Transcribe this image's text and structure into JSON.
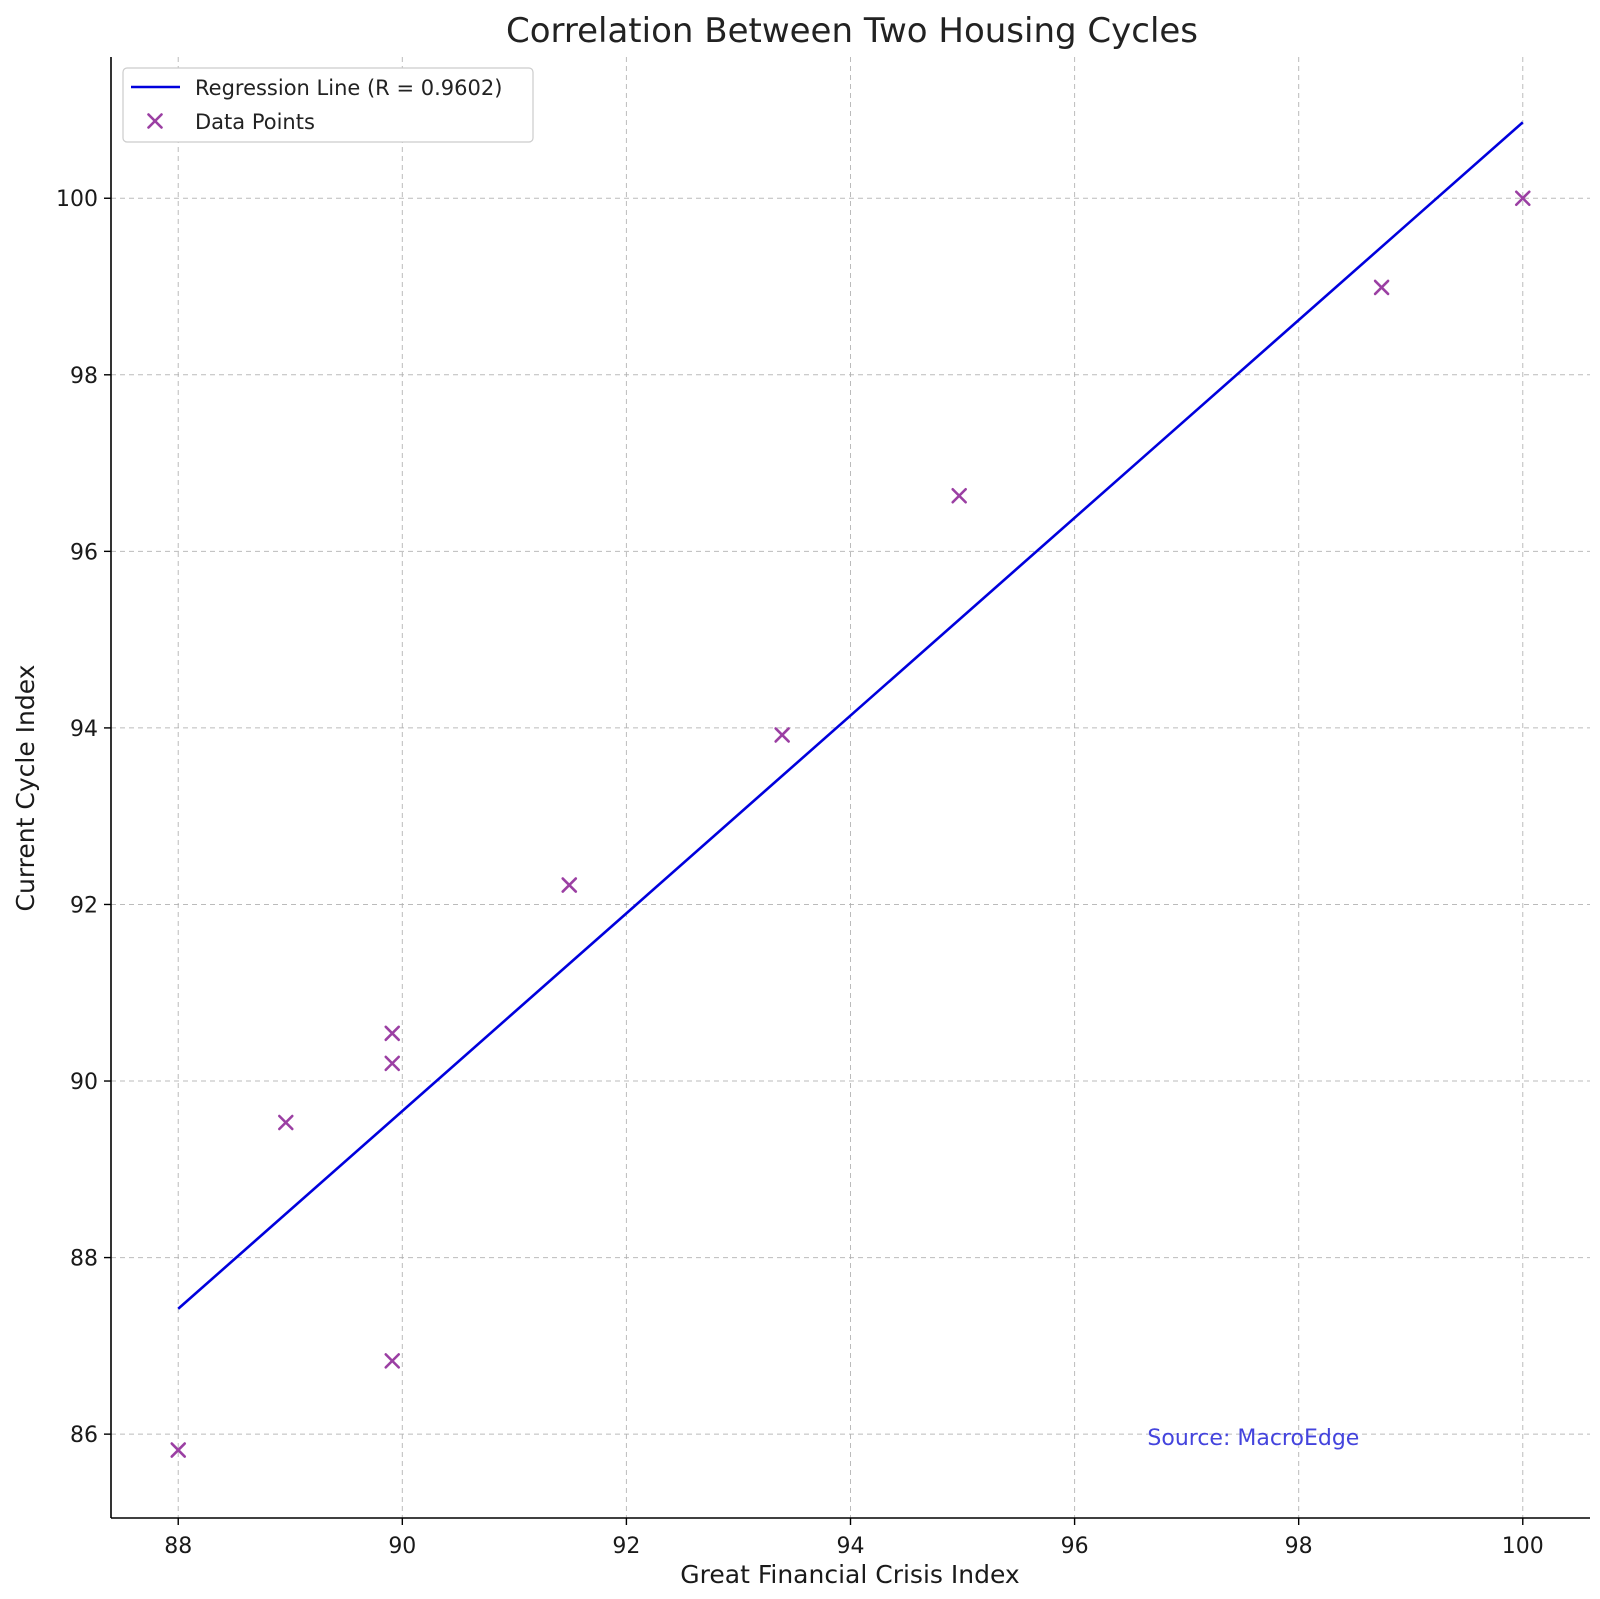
{
  "chart_data": {
    "type": "scatter",
    "title": "Correlation Between Two Housing Cycles",
    "xlabel": "Great Financial Crisis Index",
    "ylabel": "Current Cycle Index",
    "xlim": [
      87.4,
      100.6
    ],
    "ylim": [
      85.05,
      101.6
    ],
    "xticks": [
      88,
      90,
      92,
      94,
      96,
      98,
      100
    ],
    "yticks": [
      86,
      88,
      90,
      92,
      94,
      96,
      98,
      100
    ],
    "grid": true,
    "legend_position": "top-left",
    "series": [
      {
        "name": "Data Points",
        "kind": "scatter",
        "marker": "x",
        "color": "#9b3fa3",
        "points": [
          {
            "x": 88.0,
            "y": 85.82
          },
          {
            "x": 88.96,
            "y": 89.53
          },
          {
            "x": 89.91,
            "y": 86.83
          },
          {
            "x": 89.91,
            "y": 90.2
          },
          {
            "x": 89.91,
            "y": 90.54
          },
          {
            "x": 91.49,
            "y": 92.22
          },
          {
            "x": 93.39,
            "y": 93.92
          },
          {
            "x": 94.97,
            "y": 96.63
          },
          {
            "x": 98.74,
            "y": 98.99
          },
          {
            "x": 100.0,
            "y": 100.0
          }
        ]
      },
      {
        "name": "Regression Line (R = 0.9602)",
        "kind": "line",
        "color": "#0000dd",
        "points": [
          {
            "x": 88.0,
            "y": 87.42
          },
          {
            "x": 100.0,
            "y": 100.86
          }
        ]
      }
    ],
    "annotations": [
      {
        "text": "Source: MacroEdge",
        "x": 96.65,
        "y": 85.97,
        "color": "#4444dd"
      }
    ]
  }
}
